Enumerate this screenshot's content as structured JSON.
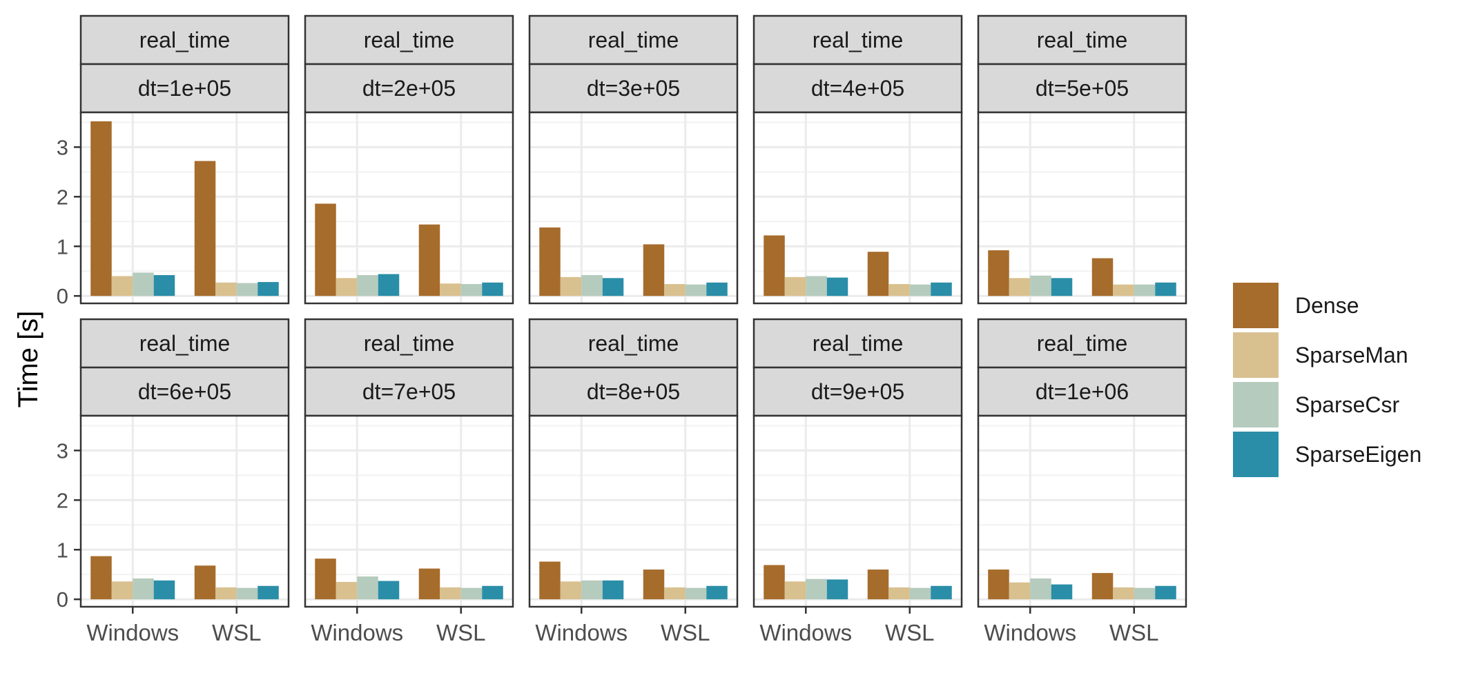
{
  "chart_data": {
    "type": "bar",
    "layout": "faceted grid, 2 rows x 5 columns, shared y axis",
    "facet_strip_top": "real_time",
    "facets": [
      {
        "label": "dt=1e+05",
        "series": [
          {
            "name": "Dense",
            "values": [
              3.52,
              2.72
            ]
          },
          {
            "name": "SparseMan",
            "values": [
              0.4,
              0.27
            ]
          },
          {
            "name": "SparseCsr",
            "values": [
              0.47,
              0.26
            ]
          },
          {
            "name": "SparseEigen",
            "values": [
              0.42,
              0.28
            ]
          }
        ]
      },
      {
        "label": "dt=2e+05",
        "series": [
          {
            "name": "Dense",
            "values": [
              1.86,
              1.44
            ]
          },
          {
            "name": "SparseMan",
            "values": [
              0.36,
              0.25
            ]
          },
          {
            "name": "SparseCsr",
            "values": [
              0.42,
              0.24
            ]
          },
          {
            "name": "SparseEigen",
            "values": [
              0.44,
              0.27
            ]
          }
        ]
      },
      {
        "label": "dt=3e+05",
        "series": [
          {
            "name": "Dense",
            "values": [
              1.38,
              1.04
            ]
          },
          {
            "name": "SparseMan",
            "values": [
              0.38,
              0.24
            ]
          },
          {
            "name": "SparseCsr",
            "values": [
              0.42,
              0.23
            ]
          },
          {
            "name": "SparseEigen",
            "values": [
              0.36,
              0.27
            ]
          }
        ]
      },
      {
        "label": "dt=4e+05",
        "series": [
          {
            "name": "Dense",
            "values": [
              1.22,
              0.89
            ]
          },
          {
            "name": "SparseMan",
            "values": [
              0.38,
              0.24
            ]
          },
          {
            "name": "SparseCsr",
            "values": [
              0.4,
              0.23
            ]
          },
          {
            "name": "SparseEigen",
            "values": [
              0.37,
              0.27
            ]
          }
        ]
      },
      {
        "label": "dt=5e+05",
        "series": [
          {
            "name": "Dense",
            "values": [
              0.92,
              0.76
            ]
          },
          {
            "name": "SparseMan",
            "values": [
              0.36,
              0.23
            ]
          },
          {
            "name": "SparseCsr",
            "values": [
              0.41,
              0.23
            ]
          },
          {
            "name": "SparseEigen",
            "values": [
              0.36,
              0.27
            ]
          }
        ]
      },
      {
        "label": "dt=6e+05",
        "series": [
          {
            "name": "Dense",
            "values": [
              0.87,
              0.68
            ]
          },
          {
            "name": "SparseMan",
            "values": [
              0.36,
              0.24
            ]
          },
          {
            "name": "SparseCsr",
            "values": [
              0.42,
              0.23
            ]
          },
          {
            "name": "SparseEigen",
            "values": [
              0.38,
              0.27
            ]
          }
        ]
      },
      {
        "label": "dt=7e+05",
        "series": [
          {
            "name": "Dense",
            "values": [
              0.82,
              0.62
            ]
          },
          {
            "name": "SparseMan",
            "values": [
              0.35,
              0.24
            ]
          },
          {
            "name": "SparseCsr",
            "values": [
              0.46,
              0.23
            ]
          },
          {
            "name": "SparseEigen",
            "values": [
              0.37,
              0.27
            ]
          }
        ]
      },
      {
        "label": "dt=8e+05",
        "series": [
          {
            "name": "Dense",
            "values": [
              0.76,
              0.6
            ]
          },
          {
            "name": "SparseMan",
            "values": [
              0.36,
              0.24
            ]
          },
          {
            "name": "SparseCsr",
            "values": [
              0.38,
              0.23
            ]
          },
          {
            "name": "SparseEigen",
            "values": [
              0.38,
              0.27
            ]
          }
        ]
      },
      {
        "label": "dt=9e+05",
        "series": [
          {
            "name": "Dense",
            "values": [
              0.69,
              0.6
            ]
          },
          {
            "name": "SparseMan",
            "values": [
              0.36,
              0.24
            ]
          },
          {
            "name": "SparseCsr",
            "values": [
              0.41,
              0.23
            ]
          },
          {
            "name": "SparseEigen",
            "values": [
              0.4,
              0.27
            ]
          }
        ]
      },
      {
        "label": "dt=1e+06",
        "series": [
          {
            "name": "Dense",
            "values": [
              0.6,
              0.53
            ]
          },
          {
            "name": "SparseMan",
            "values": [
              0.34,
              0.24
            ]
          },
          {
            "name": "SparseCsr",
            "values": [
              0.42,
              0.23
            ]
          },
          {
            "name": "SparseEigen",
            "values": [
              0.3,
              0.27
            ]
          }
        ]
      }
    ],
    "categories": [
      "Windows",
      "WSL"
    ],
    "ylabel": "Time [s]",
    "xlabel": "",
    "ylim": [
      -0.15,
      3.7
    ],
    "y_ticks": [
      0,
      1,
      2,
      3
    ],
    "grid": true,
    "legend": {
      "placement": "right",
      "entries": [
        "Dense",
        "SparseMan",
        "SparseCsr",
        "SparseEigen"
      ]
    },
    "colors": {
      "Dense": "#a66c2c",
      "SparseMan": "#d9c08f",
      "SparseCsr": "#b5cbbd",
      "SparseEigen": "#2a8ea8",
      "strip_fill": "#d9d9d9",
      "panel_border": "#333333",
      "grid_major": "#ebebeb",
      "grid_minor": "#f2f2f2",
      "axis_text": "#4d4d4d"
    }
  }
}
